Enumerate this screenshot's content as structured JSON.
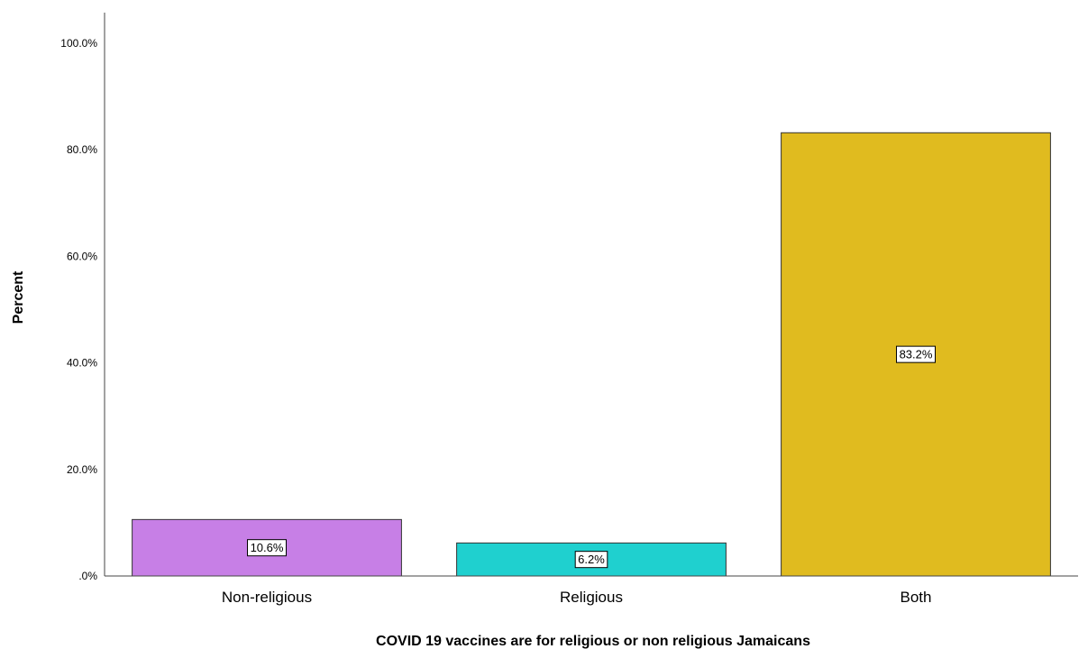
{
  "chart_data": {
    "type": "bar",
    "xlabel": "COVID 19 vaccines are for religious or non religious Jamaicans",
    "ylabel": "Percent",
    "ylim": [
      0,
      100
    ],
    "yticks": [
      ".0%",
      "20.0%",
      "40.0%",
      "60.0%",
      "80.0%",
      "100.0%"
    ],
    "categories": [
      "Non-religious",
      "Religious",
      "Both"
    ],
    "values": [
      10.6,
      6.2,
      83.2
    ],
    "data_labels": [
      "10.6%",
      "6.2%",
      "83.2%"
    ],
    "colors": [
      "#c77fe6",
      "#1fd0cf",
      "#e0bb1f"
    ],
    "grid": false,
    "legend": "none"
  }
}
